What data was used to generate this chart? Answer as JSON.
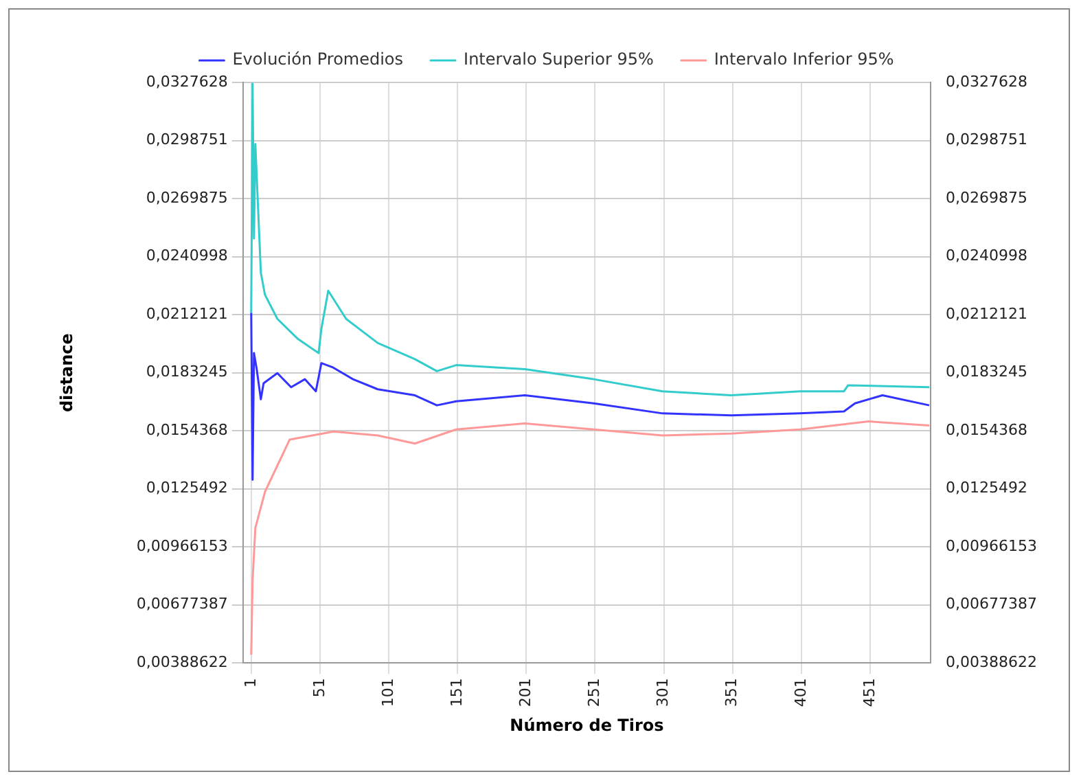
{
  "chart_data": {
    "type": "line",
    "xlabel": "Número de Tiros",
    "ylabel": "distance",
    "legend": "top",
    "grid": true,
    "marker": "none",
    "line_style": "solid",
    "xlim": [
      -5,
      495
    ],
    "xticks": [
      1,
      51,
      101,
      151,
      201,
      251,
      301,
      351,
      401,
      451
    ],
    "ylim": [
      0.00388622,
      0.0327628
    ],
    "yticks": [
      {
        "value": 0.00388622,
        "label": "0,00388622"
      },
      {
        "value": 0.00677387,
        "label": "0,00677387"
      },
      {
        "value": 0.00966153,
        "label": "0,00966153"
      },
      {
        "value": 0.0125492,
        "label": "0,0125492"
      },
      {
        "value": 0.0154368,
        "label": "0,0154368"
      },
      {
        "value": 0.0183245,
        "label": "0,0183245"
      },
      {
        "value": 0.0212121,
        "label": "0,0212121"
      },
      {
        "value": 0.0240998,
        "label": "0,0240998"
      },
      {
        "value": 0.0269875,
        "label": "0,0269875"
      },
      {
        "value": 0.0298751,
        "label": "0,0298751"
      },
      {
        "value": 0.0327628,
        "label": "0,0327628"
      }
    ],
    "y2lim": [
      0.00388622,
      0.0327628
    ],
    "y2ticks": [
      {
        "value": 0.00388622,
        "label": "0,00388622"
      },
      {
        "value": 0.00677387,
        "label": "0,00677387"
      },
      {
        "value": 0.00966153,
        "label": "0,00966153"
      },
      {
        "value": 0.0125492,
        "label": "0,0125492"
      },
      {
        "value": 0.0154368,
        "label": "0,0154368"
      },
      {
        "value": 0.0183245,
        "label": "0,0183245"
      },
      {
        "value": 0.0212121,
        "label": "0,0212121"
      },
      {
        "value": 0.0240998,
        "label": "0,0240998"
      },
      {
        "value": 0.0269875,
        "label": "0,0269875"
      },
      {
        "value": 0.0298751,
        "label": "0,0298751"
      },
      {
        "value": 0.0327628,
        "label": "0,0327628"
      }
    ],
    "series": [
      {
        "name": "Evolución Promedios",
        "color": "#3333ff",
        "x": [
          1,
          2,
          3,
          5,
          8,
          10,
          20,
          30,
          40,
          48,
          52,
          60,
          75,
          93,
          120,
          136,
          150,
          200,
          250,
          300,
          350,
          400,
          432,
          440,
          460,
          494
        ],
        "values": [
          0.0213,
          0.013,
          0.0193,
          0.0185,
          0.017,
          0.0178,
          0.0183,
          0.0176,
          0.018,
          0.0174,
          0.0188,
          0.0186,
          0.018,
          0.0175,
          0.0172,
          0.0167,
          0.0169,
          0.0172,
          0.0168,
          0.0163,
          0.0162,
          0.0163,
          0.0164,
          0.0168,
          0.0172,
          0.0167
        ]
      },
      {
        "name": "Intervalo Superior 95%",
        "color": "#33cccc",
        "x": [
          1,
          2,
          3,
          4,
          6,
          8,
          11,
          20,
          35,
          50,
          52,
          57,
          70,
          93,
          120,
          136,
          150,
          200,
          250,
          300,
          350,
          400,
          432,
          435,
          494
        ],
        "values": [
          0.0213,
          0.0327,
          0.025,
          0.0297,
          0.0265,
          0.0233,
          0.0222,
          0.021,
          0.02,
          0.0193,
          0.0205,
          0.0224,
          0.021,
          0.0198,
          0.019,
          0.0184,
          0.0187,
          0.0185,
          0.018,
          0.0174,
          0.0172,
          0.0174,
          0.0174,
          0.0177,
          0.0176
        ]
      },
      {
        "name": "Intervalo Inferior 95%",
        "color": "#ff9999",
        "x": [
          1,
          2,
          4,
          11,
          29,
          61,
          93,
          120,
          150,
          200,
          250,
          300,
          350,
          400,
          450,
          494
        ],
        "values": [
          0.0043,
          0.008,
          0.0106,
          0.0124,
          0.015,
          0.0154,
          0.0152,
          0.0148,
          0.0155,
          0.0158,
          0.0155,
          0.0152,
          0.0153,
          0.0155,
          0.0159,
          0.0157
        ]
      }
    ]
  }
}
